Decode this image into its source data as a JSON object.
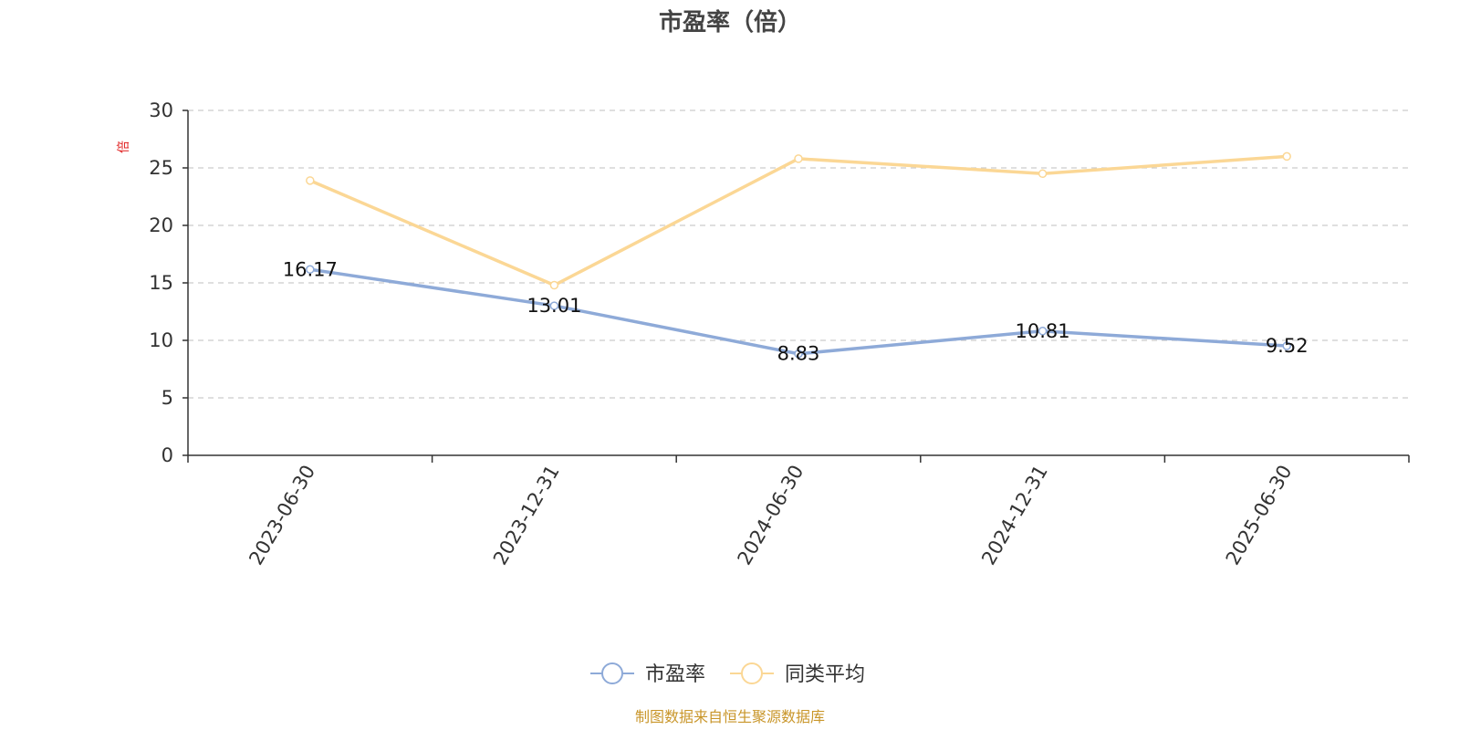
{
  "chart_data": {
    "type": "line",
    "title": "市盈率（倍）",
    "ylabel": "倍",
    "xlabel": "",
    "categories": [
      "2023-06-30",
      "2023-12-31",
      "2024-06-30",
      "2024-12-31",
      "2025-06-30"
    ],
    "ylim": [
      0,
      30
    ],
    "yticks": [
      0,
      5,
      10,
      15,
      20,
      25,
      30
    ],
    "grid": true,
    "legend_position": "bottom-center",
    "series": [
      {
        "name": "市盈率",
        "values": [
          16.17,
          13.01,
          8.83,
          10.81,
          9.52
        ],
        "labels": [
          "16.17",
          "13.01",
          "8.83",
          "10.81",
          "9.52"
        ],
        "color": "#8eaad8"
      },
      {
        "name": "同类平均",
        "values": [
          23.9,
          14.8,
          25.8,
          24.5,
          26.0
        ],
        "color": "#fbd795"
      }
    ]
  },
  "footer": {
    "source": "制图数据来自恒生聚源数据库",
    "source_color": "#c9962a"
  },
  "colors": {
    "axis": "#333333",
    "grid": "#cccccc",
    "unit": "#e02020"
  }
}
